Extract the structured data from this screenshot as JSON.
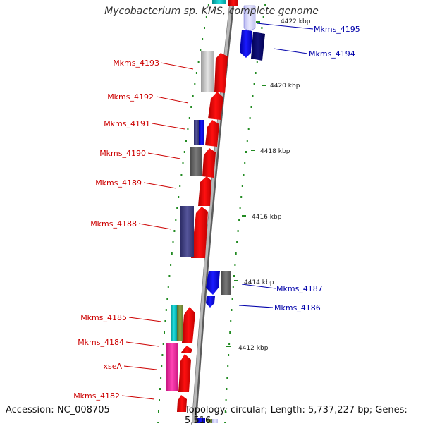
{
  "title": "Mycobacterium sp. KMS, complete genome",
  "footer": {
    "accession": "Accession: NC_008705",
    "summary": "Topology: circular; Length: 5,737,227 bp; Genes: 5,516"
  },
  "colors": {
    "forward_gene": "#ff0000",
    "reverse_gene": "#0000ff",
    "left_label": "#cc0000",
    "right_label": "#0000aa",
    "backbone": "#8c8c8c",
    "tick": "#228b22"
  },
  "scale_labels": [
    "4422 kbp",
    "4420 kbp",
    "4418 kbp",
    "4416 kbp",
    "4414 kbp",
    "4412 kbp"
  ],
  "left_labels": [
    "Mkms_4193",
    "Mkms_4192",
    "Mkms_4191",
    "Mkms_4190",
    "Mkms_4189",
    "Mkms_4188",
    "Mkms_4185",
    "Mkms_4184",
    "xseA",
    "Mkms_4182"
  ],
  "right_labels": [
    "Mkms_4195",
    "Mkms_4194",
    "Mkms_4187",
    "Mkms_4186"
  ]
}
